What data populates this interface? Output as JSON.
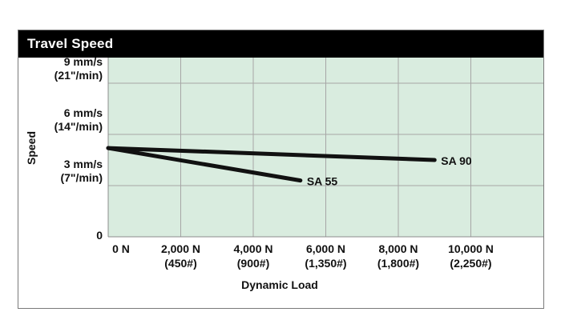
{
  "chart_data": {
    "type": "line",
    "title": "Travel Speed",
    "xlabel": "Dynamic Load",
    "ylabel": "Speed",
    "xlim": [
      0,
      12000
    ],
    "ylim": [
      0,
      10.5
    ],
    "grid": true,
    "x_ticks": [
      {
        "value": 0,
        "line1": "0 N",
        "line2": ""
      },
      {
        "value": 2000,
        "line1": "2,000 N",
        "line2": "(450#)"
      },
      {
        "value": 4000,
        "line1": "4,000 N",
        "line2": "(900#)"
      },
      {
        "value": 6000,
        "line1": "6,000 N",
        "line2": "(1,350#)"
      },
      {
        "value": 8000,
        "line1": "8,000 N",
        "line2": "(1,800#)"
      },
      {
        "value": 10000,
        "line1": "10,000 N",
        "line2": "(2,250#)"
      }
    ],
    "y_ticks": [
      {
        "value": 0,
        "line1": "0",
        "line2": ""
      },
      {
        "value": 3,
        "line1": "3 mm/s",
        "line2": "(7\"/min)"
      },
      {
        "value": 6,
        "line1": "6 mm/s",
        "line2": "(14\"/min)"
      },
      {
        "value": 9,
        "line1": "9 mm/s",
        "line2": "(21\"/min)"
      }
    ],
    "series": [
      {
        "name": "SA 55",
        "x": [
          0,
          5300
        ],
        "y": [
          5.2,
          3.3
        ]
      },
      {
        "name": "SA 90",
        "x": [
          0,
          9000
        ],
        "y": [
          5.2,
          4.5
        ]
      }
    ],
    "colors": {
      "plot_background": "#d9ecdf",
      "line": "#111111",
      "grid": "#a6a6a6",
      "title_bar": "#000000"
    }
  }
}
